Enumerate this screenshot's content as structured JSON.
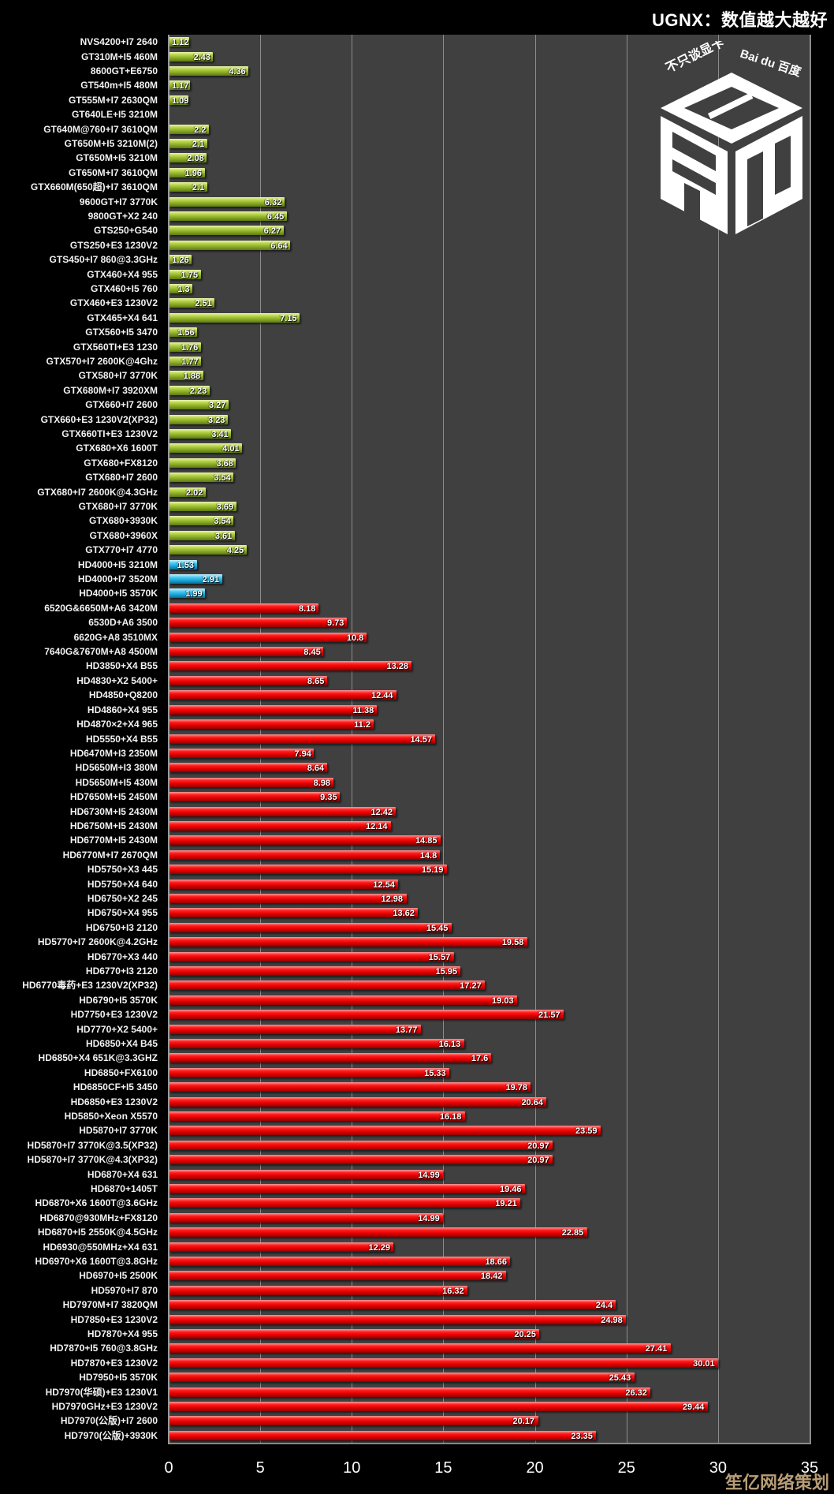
{
  "chart_data": {
    "type": "bar",
    "orientation": "horizontal",
    "title": "UGNX：数值越大越好",
    "xlabel": "",
    "ylabel": "",
    "xlim": [
      0,
      35
    ],
    "xticks": [
      0,
      5,
      10,
      15,
      20,
      25,
      30,
      35
    ],
    "grid": true,
    "legend": "none",
    "series_colors": {
      "nvidia": "#9bbb36",
      "intel": "#29b6e6",
      "amd": "#ee1111"
    },
    "categories": [
      {
        "label": "NVS4200+I7 2640",
        "value": 1.12,
        "group": "nvidia"
      },
      {
        "label": "GT310M+I5 460M",
        "value": 2.43,
        "group": "nvidia"
      },
      {
        "label": "8600GT+E6750",
        "value": 4.36,
        "group": "nvidia"
      },
      {
        "label": "GT540m+I5 480M",
        "value": 1.17,
        "group": "nvidia"
      },
      {
        "label": "GT555M+I7 2630QM",
        "value": 1.09,
        "group": "nvidia"
      },
      {
        "label": "GT640LE+I5 3210M",
        "value": null,
        "group": "nvidia"
      },
      {
        "label": "GT640M@760+I7 3610QM",
        "value": 2.2,
        "group": "nvidia"
      },
      {
        "label": "GT650M+I5 3210M(2)",
        "value": 2.1,
        "group": "nvidia"
      },
      {
        "label": "GT650M+I5 3210M",
        "value": 2.08,
        "group": "nvidia"
      },
      {
        "label": "GT650M+I7 3610QM",
        "value": 1.96,
        "group": "nvidia"
      },
      {
        "label": "GTX660M(650超)+I7 3610QM",
        "value": 2.1,
        "group": "nvidia"
      },
      {
        "label": "9600GT+I7 3770K",
        "value": 6.32,
        "group": "nvidia"
      },
      {
        "label": "9800GT+X2 240",
        "value": 6.45,
        "group": "nvidia"
      },
      {
        "label": "GTS250+G540",
        "value": 6.27,
        "group": "nvidia"
      },
      {
        "label": "GTS250+E3 1230V2",
        "value": 6.64,
        "group": "nvidia"
      },
      {
        "label": "GTS450+I7 860@3.3GHz",
        "value": 1.26,
        "group": "nvidia"
      },
      {
        "label": "GTX460+X4 955",
        "value": 1.75,
        "group": "nvidia"
      },
      {
        "label": "GTX460+I5 760",
        "value": 1.3,
        "group": "nvidia"
      },
      {
        "label": "GTX460+E3 1230V2",
        "value": 2.51,
        "group": "nvidia"
      },
      {
        "label": "GTX465+X4 641",
        "value": 7.15,
        "group": "nvidia"
      },
      {
        "label": "GTX560+I5 3470",
        "value": 1.56,
        "group": "nvidia"
      },
      {
        "label": "GTX560TI+E3 1230",
        "value": 1.76,
        "group": "nvidia"
      },
      {
        "label": "GTX570+I7 2600K@4Ghz",
        "value": 1.77,
        "group": "nvidia"
      },
      {
        "label": "GTX580+I7 3770K",
        "value": 1.88,
        "group": "nvidia"
      },
      {
        "label": "GTX680M+I7 3920XM",
        "value": 2.23,
        "group": "nvidia"
      },
      {
        "label": "GTX660+I7 2600",
        "value": 3.27,
        "group": "nvidia"
      },
      {
        "label": "GTX660+E3 1230V2(XP32)",
        "value": 3.23,
        "group": "nvidia"
      },
      {
        "label": "GTX660TI+E3 1230V2",
        "value": 3.41,
        "group": "nvidia"
      },
      {
        "label": "GTX680+X6 1600T",
        "value": 4.01,
        "group": "nvidia"
      },
      {
        "label": "GTX680+FX8120",
        "value": 3.68,
        "group": "nvidia"
      },
      {
        "label": "GTX680+I7 2600",
        "value": 3.54,
        "group": "nvidia"
      },
      {
        "label": "GTX680+I7 2600K@4.3GHz",
        "value": 2.02,
        "group": "nvidia"
      },
      {
        "label": "GTX680+I7 3770K",
        "value": 3.69,
        "group": "nvidia"
      },
      {
        "label": "GTX680+3930K",
        "value": 3.54,
        "group": "nvidia"
      },
      {
        "label": "GTX680+3960X",
        "value": 3.61,
        "group": "nvidia"
      },
      {
        "label": "GTX770+I7 4770",
        "value": 4.25,
        "group": "nvidia"
      },
      {
        "label": "HD4000+I5 3210M",
        "value": 1.53,
        "group": "intel"
      },
      {
        "label": "HD4000+I7 3520M",
        "value": 2.91,
        "group": "intel"
      },
      {
        "label": "HD4000+I5 3570K",
        "value": 1.99,
        "group": "intel"
      },
      {
        "label": "6520G&6650M+A6 3420M",
        "value": 8.18,
        "group": "amd"
      },
      {
        "label": "6530D+A6 3500",
        "value": 9.73,
        "group": "amd"
      },
      {
        "label": "6620G+A8 3510MX",
        "value": 10.8,
        "group": "amd"
      },
      {
        "label": "7640G&7670M+A8 4500M",
        "value": 8.45,
        "group": "amd"
      },
      {
        "label": "HD3850+X4 B55",
        "value": 13.28,
        "group": "amd"
      },
      {
        "label": "HD4830+X2 5400+",
        "value": 8.65,
        "group": "amd"
      },
      {
        "label": "HD4850+Q8200",
        "value": 12.44,
        "group": "amd"
      },
      {
        "label": "HD4860+X4 955",
        "value": 11.38,
        "group": "amd"
      },
      {
        "label": "HD4870×2+X4 965",
        "value": 11.2,
        "group": "amd"
      },
      {
        "label": "HD5550+X4 B55",
        "value": 14.57,
        "group": "amd"
      },
      {
        "label": "HD6470M+I3 2350M",
        "value": 7.94,
        "group": "amd"
      },
      {
        "label": "HD5650M+I3 380M",
        "value": 8.64,
        "group": "amd"
      },
      {
        "label": "HD5650M+I5 430M",
        "value": 8.98,
        "group": "amd"
      },
      {
        "label": "HD7650M+I5 2450M",
        "value": 9.35,
        "group": "amd"
      },
      {
        "label": "HD6730M+I5 2430M",
        "value": 12.42,
        "group": "amd"
      },
      {
        "label": "HD6750M+I5 2430M",
        "value": 12.14,
        "group": "amd"
      },
      {
        "label": "HD6770M+I5 2430M",
        "value": 14.85,
        "group": "amd"
      },
      {
        "label": "HD6770M+I7 2670QM",
        "value": 14.8,
        "group": "amd"
      },
      {
        "label": "HD5750+X3 445",
        "value": 15.19,
        "group": "amd"
      },
      {
        "label": "HD5750+X4 640",
        "value": 12.54,
        "group": "amd"
      },
      {
        "label": "HD6750+X2 245",
        "value": 12.98,
        "group": "amd"
      },
      {
        "label": "HD6750+X4 955",
        "value": 13.62,
        "group": "amd"
      },
      {
        "label": "HD6750+I3 2120",
        "value": 15.45,
        "group": "amd"
      },
      {
        "label": "HD5770+I7 2600K@4.2GHz",
        "value": 19.58,
        "group": "amd"
      },
      {
        "label": "HD6770+X3 440",
        "value": 15.57,
        "group": "amd"
      },
      {
        "label": "HD6770+I3 2120",
        "value": 15.95,
        "group": "amd"
      },
      {
        "label": "HD6770毒药+E3 1230V2(XP32)",
        "value": 17.27,
        "group": "amd"
      },
      {
        "label": "HD6790+I5 3570K",
        "value": 19.03,
        "group": "amd"
      },
      {
        "label": "HD7750+E3 1230V2",
        "value": 21.57,
        "group": "amd"
      },
      {
        "label": "HD7770+X2 5400+",
        "value": 13.77,
        "group": "amd"
      },
      {
        "label": "HD6850+X4 B45",
        "value": 16.13,
        "group": "amd"
      },
      {
        "label": "HD6850+X4 651K@3.3GHZ",
        "value": 17.6,
        "group": "amd"
      },
      {
        "label": "HD6850+FX6100",
        "value": 15.33,
        "group": "amd"
      },
      {
        "label": "HD6850CF+I5 3450",
        "value": 19.78,
        "group": "amd"
      },
      {
        "label": "HD6850+E3 1230V2",
        "value": 20.64,
        "group": "amd"
      },
      {
        "label": "HD5850+Xeon X5570",
        "value": 16.18,
        "group": "amd"
      },
      {
        "label": "HD5870+I7 3770K",
        "value": 23.59,
        "group": "amd"
      },
      {
        "label": "HD5870+I7 3770K@3.5(XP32)",
        "value": 20.97,
        "group": "amd"
      },
      {
        "label": "HD5870+I7 3770K@4.3(XP32)",
        "value": 20.97,
        "group": "amd"
      },
      {
        "label": "HD6870+X4 631",
        "value": 14.99,
        "group": "amd"
      },
      {
        "label": "HD6870+1405T",
        "value": 19.46,
        "group": "amd"
      },
      {
        "label": "HD6870+X6 1600T@3.6GHz",
        "value": 19.21,
        "group": "amd"
      },
      {
        "label": "HD6870@930MHz+FX8120",
        "value": 14.99,
        "group": "amd"
      },
      {
        "label": "HD6870+I5 2550K@4.5GHz",
        "value": 22.85,
        "group": "amd"
      },
      {
        "label": "HD6930@550MHz+X4 631",
        "value": 12.29,
        "group": "amd"
      },
      {
        "label": "HD6970+X6 1600T@3.8GHz",
        "value": 18.66,
        "group": "amd"
      },
      {
        "label": "HD6970+I5 2500K",
        "value": 18.42,
        "group": "amd"
      },
      {
        "label": "HD5970+I7 870",
        "value": 16.32,
        "group": "amd"
      },
      {
        "label": "HD7970M+I7 3820QM",
        "value": 24.4,
        "group": "amd"
      },
      {
        "label": "HD7850+E3 1230V2",
        "value": 24.98,
        "group": "amd"
      },
      {
        "label": "HD7870+X4 955",
        "value": 20.25,
        "group": "amd"
      },
      {
        "label": "HD7870+I5 760@3.8GHz",
        "value": 27.41,
        "group": "amd"
      },
      {
        "label": "HD7870+E3 1230V2",
        "value": 30.01,
        "group": "amd"
      },
      {
        "label": "HD7950+I5 3570K",
        "value": 25.43,
        "group": "amd"
      },
      {
        "label": "HD7970(华硕)+E3 1230V1",
        "value": 26.32,
        "group": "amd"
      },
      {
        "label": "HD7970GHz+E3 1230V2",
        "value": 29.44,
        "group": "amd"
      },
      {
        "label": "HD7970(公版)+I7 2600",
        "value": 20.17,
        "group": "amd"
      },
      {
        "label": "HD7970(公版)+3930K",
        "value": 23.35,
        "group": "amd"
      }
    ]
  },
  "logo": {
    "slogan": "不只谈显卡",
    "brand": "Bai du 百度",
    "name": "显吧"
  },
  "watermark": "笙亿网络策划"
}
